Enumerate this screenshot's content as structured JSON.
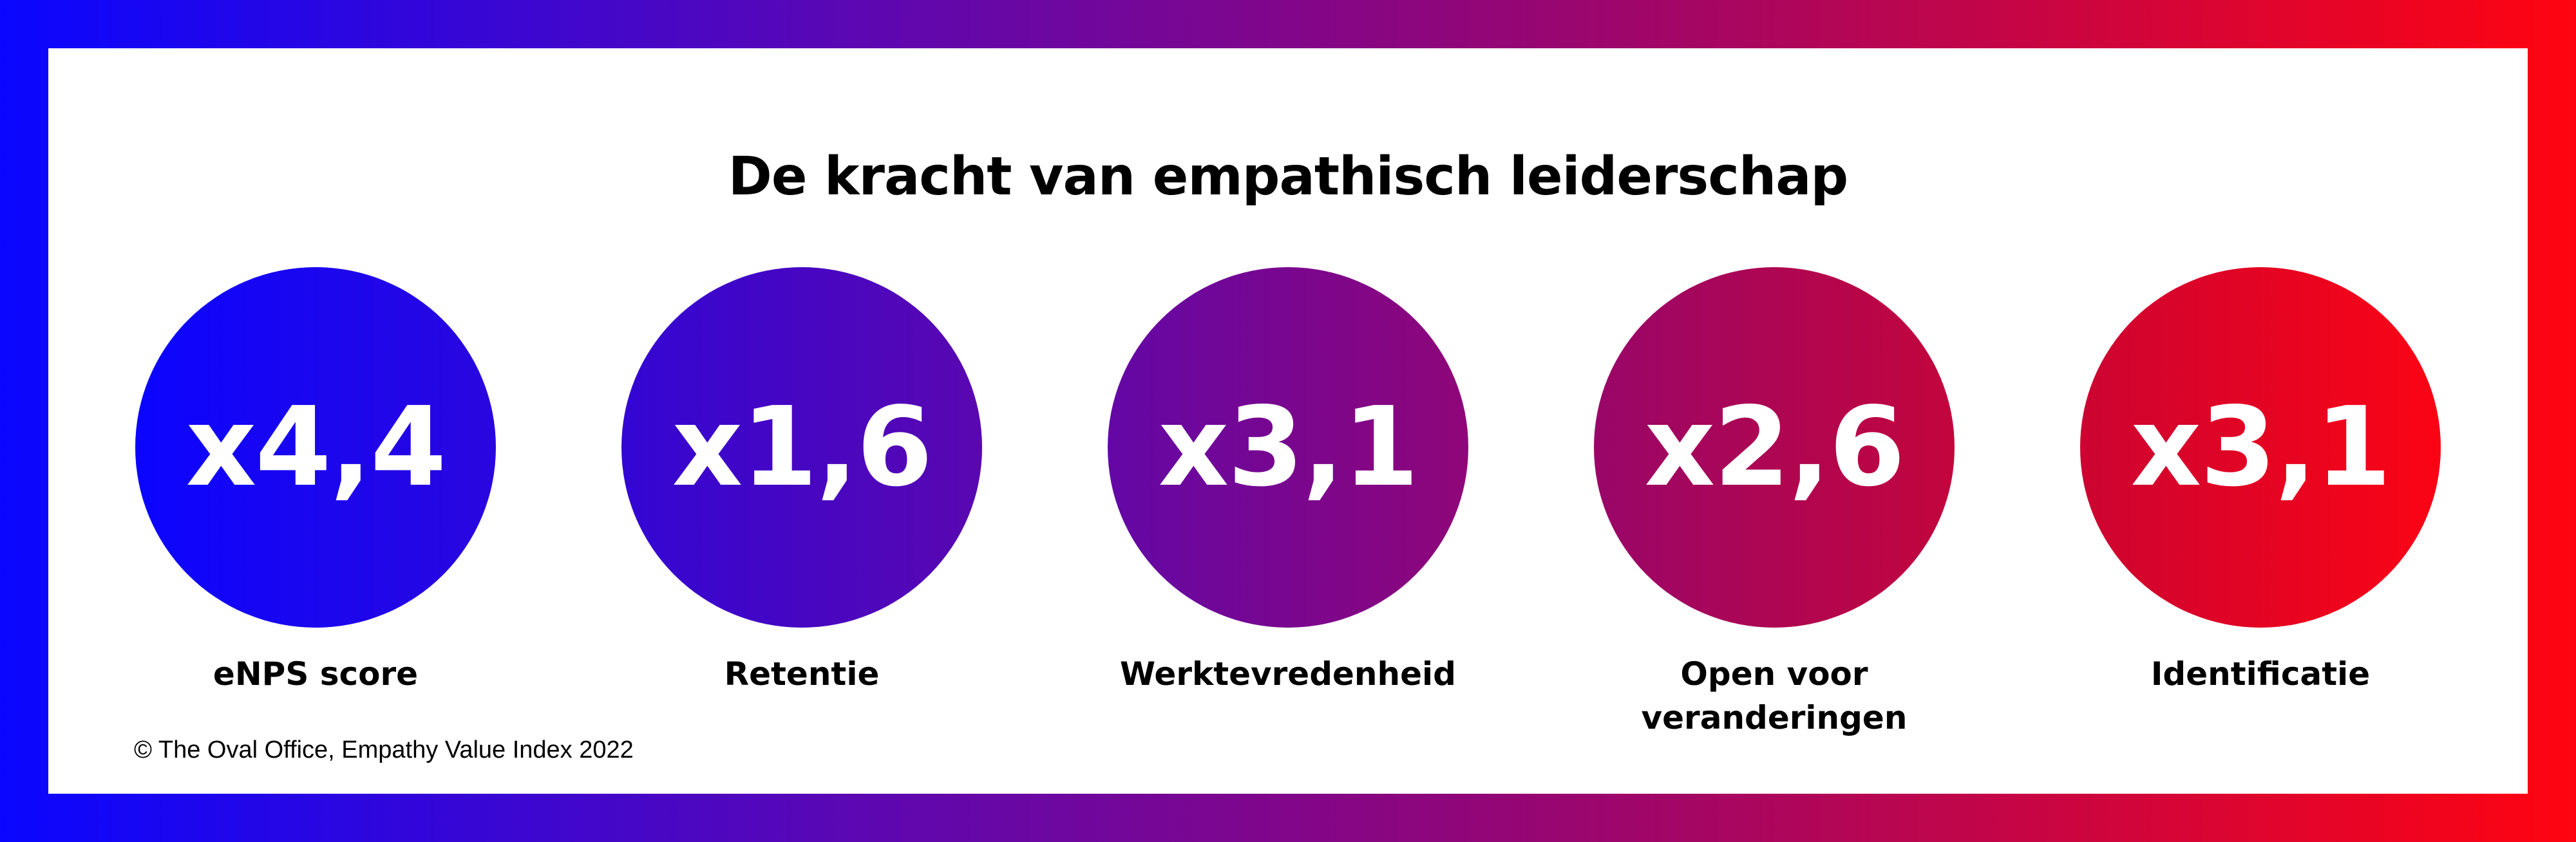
{
  "title": "De kracht van empathisch leiderschap",
  "stats": [
    {
      "value": "x4,4",
      "label": "eNPS score"
    },
    {
      "value": "x1,6",
      "label": "Retentie"
    },
    {
      "value": "x3,1",
      "label": "Werktevredenheid"
    },
    {
      "value": "x2,6",
      "label_line1": "Open voor",
      "label_line2": "veranderingen"
    },
    {
      "value": "x3,1",
      "label": "Identificatie"
    }
  ],
  "credit": "© The Oval Office, Empathy Value Index 2022",
  "colors": {
    "gradient_start": "#0a06ff",
    "gradient_end": "#ff0410",
    "panel": "#ffffff",
    "text": "#000000"
  }
}
